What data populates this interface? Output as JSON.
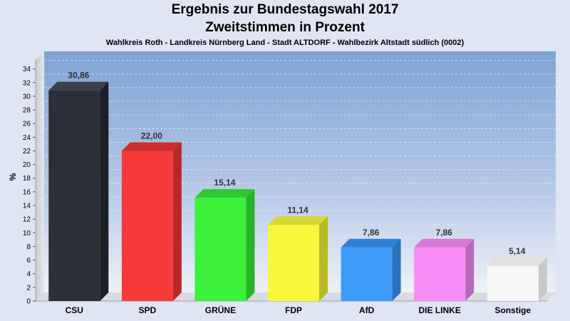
{
  "chart_data": {
    "type": "bar",
    "title": "Ergebnis zur Bundestagswahl 2017",
    "title2": "Zweitstimmen in Prozent",
    "subtitle": "Wahlkreis Roth - Landkreis Nürnberg Land - Stadt ALTDORF - Wahlbezirk Altstadt südlich (0002)",
    "ylabel": "%",
    "ylim": [
      0,
      35
    ],
    "yticks": [
      0,
      2,
      4,
      6,
      8,
      10,
      12,
      14,
      16,
      18,
      20,
      22,
      24,
      26,
      28,
      30,
      32,
      34
    ],
    "grid": true,
    "categories": [
      "CSU",
      "SPD",
      "GRÜNE",
      "FDP",
      "AfD",
      "DIE LINKE",
      "Sonstige"
    ],
    "values": [
      30.86,
      22.0,
      15.14,
      11.14,
      7.86,
      7.86,
      5.14
    ],
    "value_labels": [
      "30,86",
      "22,00",
      "15,14",
      "11,14",
      "7,86",
      "7,86",
      "5,14"
    ],
    "colors": [
      "#2b2f38",
      "#f63a3a",
      "#3cf23c",
      "#f7f73c",
      "#3c9bf7",
      "#f78ef7",
      "#f7f7f7"
    ],
    "side_colors": [
      "#1c1f25",
      "#b92828",
      "#2ab22a",
      "#b9b928",
      "#2a72b9",
      "#b968b9",
      "#c9c9c9"
    ],
    "top_colors": [
      "#3a3f4a",
      "#c83030",
      "#30c830",
      "#d6d630",
      "#3080d6",
      "#d678d6",
      "#e0e0e0"
    ]
  }
}
